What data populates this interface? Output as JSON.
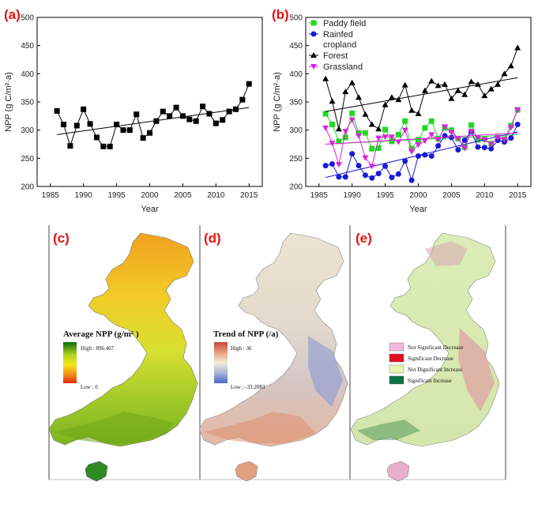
{
  "panels": {
    "a": "(a)",
    "b": "(b)",
    "c": "(c)",
    "d": "(d)",
    "e": "(e)"
  },
  "chart_data": [
    {
      "type": "line",
      "panel": "(a)",
      "xlabel": "Year",
      "ylabel": "NPP (g C/m²·a)",
      "xlim": [
        1983,
        2017
      ],
      "ylim": [
        200,
        500
      ],
      "xticks": [
        1985,
        1990,
        1995,
        2000,
        2005,
        2010,
        2015
      ],
      "yticks": [
        200,
        250,
        300,
        350,
        400,
        450,
        500
      ],
      "series": [
        {
          "marker": "square",
          "color": "#000000",
          "x": [
            1986,
            1987,
            1988,
            1989,
            1990,
            1991,
            1992,
            1993,
            1994,
            1995,
            1996,
            1997,
            1998,
            1999,
            2000,
            2001,
            2002,
            2003,
            2004,
            2005,
            2006,
            2007,
            2008,
            2009,
            2010,
            2011,
            2012,
            2013,
            2014,
            2015
          ],
          "values": [
            334,
            310,
            272,
            308,
            337,
            311,
            287,
            271,
            271,
            310,
            300,
            300,
            328,
            286,
            295,
            316,
            333,
            325,
            340,
            325,
            319,
            316,
            342,
            329,
            312,
            318,
            333,
            337,
            354,
            382
          ],
          "trend": [
            292,
            340
          ]
        }
      ]
    },
    {
      "type": "line",
      "panel": "(b)",
      "xlabel": "Year",
      "ylabel": "NPP (g C/m²·a)",
      "xlim": [
        1983,
        2017
      ],
      "ylim": [
        200,
        500
      ],
      "xticks": [
        1985,
        1990,
        1995,
        2000,
        2005,
        2010,
        2015
      ],
      "yticks": [
        200,
        250,
        300,
        350,
        400,
        450,
        500
      ],
      "legend": "top-left",
      "series": [
        {
          "name": "Paddy field",
          "marker": "square",
          "color": "#22d922",
          "x": [
            1986,
            1987,
            1988,
            1989,
            1990,
            1991,
            1992,
            1993,
            1994,
            1995,
            1996,
            1997,
            1998,
            1999,
            2000,
            2001,
            2002,
            2003,
            2004,
            2005,
            2006,
            2007,
            2008,
            2009,
            2010,
            2011,
            2012,
            2013,
            2014,
            2015
          ],
          "values": [
            329,
            310,
            280,
            287,
            330,
            295,
            295,
            267,
            268,
            301,
            280,
            292,
            316,
            267,
            283,
            304,
            316,
            285,
            304,
            300,
            285,
            270,
            309,
            283,
            284,
            276,
            287,
            284,
            308,
            336
          ],
          "trend": [
            275,
            292
          ]
        },
        {
          "name": "Rainfed cropland",
          "marker": "circle",
          "color": "#1a1ad8",
          "x": [
            1986,
            1987,
            1988,
            1989,
            1990,
            1991,
            1992,
            1993,
            1994,
            1995,
            1996,
            1997,
            1998,
            1999,
            2000,
            2001,
            2002,
            2003,
            2004,
            2005,
            2006,
            2007,
            2008,
            2009,
            2010,
            2011,
            2012,
            2013,
            2014,
            2015
          ],
          "values": [
            237,
            240,
            217,
            217,
            258,
            237,
            220,
            215,
            223,
            236,
            216,
            222,
            245,
            211,
            254,
            256,
            254,
            272,
            290,
            287,
            265,
            282,
            297,
            270,
            269,
            267,
            282,
            279,
            286,
            310
          ],
          "trend": [
            216,
            297
          ]
        },
        {
          "name": "Forest",
          "marker": "triangle",
          "color": "#000000",
          "x": [
            1986,
            1987,
            1988,
            1989,
            1990,
            1991,
            1992,
            1993,
            1994,
            1995,
            1996,
            1997,
            1998,
            1999,
            2000,
            2001,
            2002,
            2003,
            2004,
            2005,
            2006,
            2007,
            2008,
            2009,
            2010,
            2011,
            2012,
            2013,
            2014,
            2015
          ],
          "values": [
            391,
            351,
            302,
            368,
            384,
            358,
            328,
            310,
            302,
            345,
            358,
            354,
            380,
            335,
            329,
            370,
            387,
            379,
            381,
            356,
            370,
            363,
            386,
            381,
            361,
            373,
            381,
            400,
            414,
            446
          ],
          "trend": [
            333,
            393
          ]
        },
        {
          "name": "Grassland",
          "marker": "triangle-down",
          "color": "#e020e0",
          "x": [
            1986,
            1987,
            1988,
            1989,
            1990,
            1991,
            1992,
            1993,
            1994,
            1995,
            1996,
            1997,
            1998,
            1999,
            2000,
            2001,
            2002,
            2003,
            2004,
            2005,
            2006,
            2007,
            2008,
            2009,
            2010,
            2011,
            2012,
            2013,
            2014,
            2015
          ],
          "values": [
            304,
            277,
            239,
            298,
            318,
            290,
            251,
            236,
            286,
            288,
            288,
            279,
            300,
            262,
            274,
            281,
            292,
            283,
            306,
            296,
            285,
            268,
            298,
            287,
            283,
            275,
            287,
            283,
            305,
            336
          ],
          "trend": [
            275,
            295
          ]
        }
      ]
    }
  ],
  "maps": [
    {
      "panel": "(c)",
      "legend_title": "Average NPP (g/m² )",
      "high_label": "High : 896.467",
      "low_label": "Low : 0",
      "ramp_colors": [
        "#0d6a0d",
        "#a8d41c",
        "#f5e61a",
        "#f08a1a",
        "#e8260a"
      ]
    },
    {
      "panel": "(d)",
      "legend_title": "Trend of NPP (/a)",
      "high_label": "High : 36",
      "low_label": "Low : -33.2083",
      "ramp_colors": [
        "#c8453a",
        "#eab08e",
        "#f2ecd8",
        "#a8b4d8",
        "#4a66c8"
      ]
    },
    {
      "panel": "(e)",
      "legend": [
        {
          "label": "Not Significant Decrease",
          "color": "#f4b8e0"
        },
        {
          "label": "Significant Decrease",
          "color": "#e0101a"
        },
        {
          "label": "Not Dignificant Increase",
          "color": "#e6f5b0"
        },
        {
          "label": "Significant Increase",
          "color": "#0f7048"
        }
      ]
    }
  ]
}
